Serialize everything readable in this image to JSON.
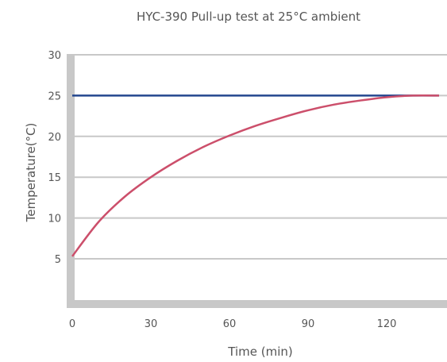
{
  "chart_data": {
    "type": "line",
    "title": "HYC-390 Pull-up test at 25°C ambient",
    "xlabel": "Time (min)",
    "ylabel": "Temperature(°C)",
    "xlim": [
      0,
      140
    ],
    "ylim": [
      0,
      30
    ],
    "x_ticks": [
      "0",
      "30",
      "60",
      "90",
      "120"
    ],
    "y_ticks": [
      "5",
      "10",
      "15",
      "20",
      "25",
      "30"
    ],
    "grid": "horizontal",
    "series": [
      {
        "color": "#24478f",
        "x": [
          0,
          140
        ],
        "y": [
          25,
          25
        ]
      },
      {
        "color": "#cc4f6b",
        "x": [
          0,
          10,
          20,
          30,
          40,
          50,
          60,
          70,
          80,
          90,
          100,
          110,
          120,
          130,
          140
        ],
        "y": [
          5.3,
          9.5,
          12.6,
          15.0,
          17.0,
          18.7,
          20.1,
          21.3,
          22.3,
          23.2,
          23.9,
          24.4,
          24.8,
          25.0,
          25.0
        ]
      }
    ]
  }
}
